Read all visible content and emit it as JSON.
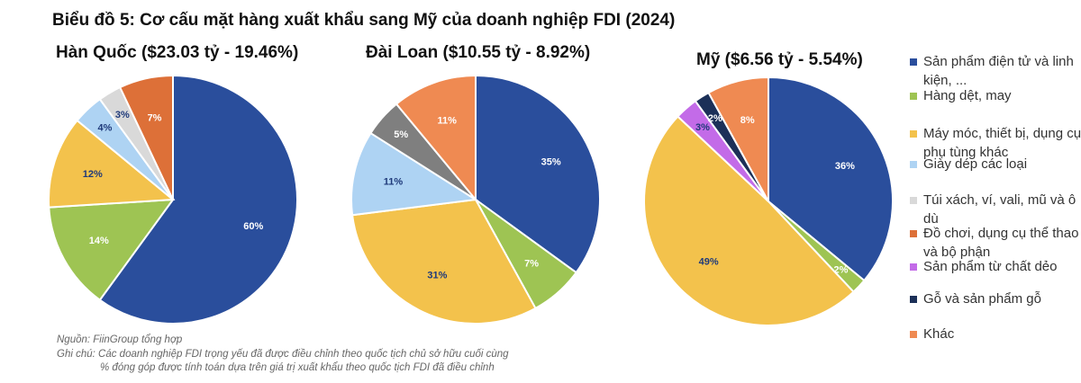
{
  "title": "Biểu đồ 5: Cơ cấu mặt hàng xuất khẩu sang Mỹ của doanh nghiệp FDI (2024)",
  "legend": [
    {
      "label": "Sản phẩm điện tử và linh kiện, ...",
      "color": "#2a4e9c"
    },
    {
      "label": "Hàng dệt, may",
      "color": "#9ec453"
    },
    {
      "label": "Máy móc, thiết bị, dụng cụ phụ tùng khác",
      "color": "#f3c24c"
    },
    {
      "label": "Giày dép các loại",
      "color": "#aed3f3"
    },
    {
      "label": "Túi xách, ví, vali, mũ và ô dù",
      "color": "#d9d9d9"
    },
    {
      "label": "Đồ chơi, dụng cụ thể thao và bộ phận",
      "color": "#dd7038"
    },
    {
      "label": "Sản phẩm từ chất dẻo",
      "color": "#c36be8"
    },
    {
      "label": "Gỗ và sản phẩm gỗ",
      "color": "#1c3058"
    },
    {
      "label": "Khác",
      "color": "#ef8a52"
    }
  ],
  "chart_data": [
    {
      "type": "pie",
      "title": "Hàn Quốc ($23.03 tỷ - 19.46%)",
      "slices": [
        {
          "label": "60%",
          "value": 60,
          "color": "#2a4e9c"
        },
        {
          "label": "14%",
          "value": 14,
          "color": "#9ec453"
        },
        {
          "label": "12%",
          "value": 12,
          "color": "#f3c24c"
        },
        {
          "label": "4%",
          "value": 4,
          "color": "#aed3f3"
        },
        {
          "label": "3%",
          "value": 3,
          "color": "#d9d9d9"
        },
        {
          "label": "7%",
          "value": 7,
          "color": "#dd7038"
        }
      ]
    },
    {
      "type": "pie",
      "title": "Đài Loan ($10.55 tỷ - 8.92%)",
      "slices": [
        {
          "label": "35%",
          "value": 35,
          "color": "#2a4e9c"
        },
        {
          "label": "7%",
          "value": 7,
          "color": "#9ec453"
        },
        {
          "label": "31%",
          "value": 31,
          "color": "#f3c24c"
        },
        {
          "label": "11%",
          "value": 11,
          "color": "#aed3f3"
        },
        {
          "label": "5%",
          "value": 5,
          "color": "#7f7f7f"
        },
        {
          "label": "11%",
          "value": 11,
          "color": "#ef8a52"
        }
      ]
    },
    {
      "type": "pie",
      "title": "Mỹ ($6.56 tỷ - 5.54%)",
      "slices": [
        {
          "label": "36%",
          "value": 36,
          "color": "#2a4e9c"
        },
        {
          "label": "2%",
          "value": 2,
          "color": "#9ec453"
        },
        {
          "label": "49%",
          "value": 49,
          "color": "#f3c24c"
        },
        {
          "label": "3%",
          "value": 3,
          "color": "#c36be8"
        },
        {
          "label": "2%",
          "value": 2,
          "color": "#1c3058"
        },
        {
          "label": "8%",
          "value": 8,
          "color": "#ef8a52"
        }
      ]
    }
  ],
  "notes": {
    "source": "Nguồn: FiinGroup tổng hợp",
    "note1": "Ghi chú: Các doanh nghiệp FDI trọng yếu đã được điều chỉnh theo quốc tịch chủ sở hữu cuối cùng",
    "note2": "% đóng góp được tính toán dựa trên giá trị xuất khẩu theo quốc tịch FDI đã điều chỉnh"
  }
}
